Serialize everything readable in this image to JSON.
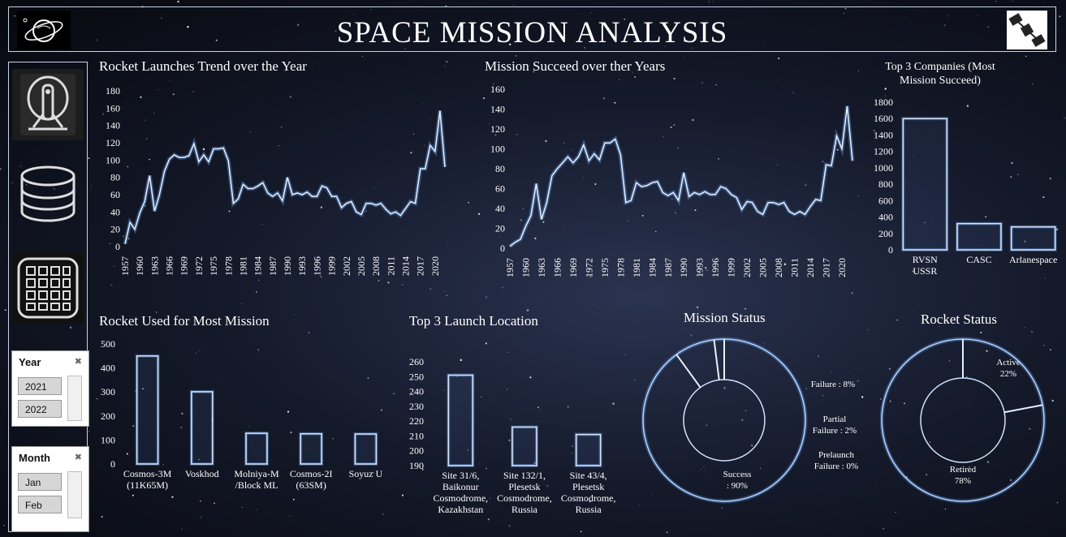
{
  "header": {
    "title": "SPACE MISSION ANALYSIS"
  },
  "sidebar": {
    "icons": [
      "rocket-icon",
      "database-icon",
      "grid-icon"
    ]
  },
  "slicers": {
    "year": {
      "title": "Year",
      "items": [
        "2021",
        "2022"
      ]
    },
    "month": {
      "title": "Month",
      "items": [
        "Jan",
        "Feb"
      ]
    }
  },
  "chart_data": [
    {
      "id": "launch-trend",
      "type": "line",
      "title": "Rocket Launches Trend over the Year",
      "xlabel": "",
      "ylabel": "",
      "ylim": [
        0,
        180
      ],
      "yticks": [
        0,
        20,
        40,
        60,
        80,
        100,
        120,
        140,
        160,
        180
      ],
      "xtick_labels": [
        "1957",
        "1960",
        "1963",
        "1966",
        "1969",
        "1972",
        "1975",
        "1978",
        "1981",
        "1984",
        "1987",
        "1990",
        "1993",
        "1996",
        "1999",
        "2002",
        "2005",
        "2008",
        "2011",
        "2014",
        "2017",
        "2020"
      ],
      "x": [
        1957,
        1958,
        1959,
        1960,
        1961,
        1962,
        1963,
        1964,
        1965,
        1966,
        1967,
        1968,
        1969,
        1970,
        1971,
        1972,
        1973,
        1974,
        1975,
        1976,
        1977,
        1978,
        1979,
        1980,
        1981,
        1982,
        1983,
        1984,
        1985,
        1986,
        1987,
        1988,
        1989,
        1990,
        1991,
        1992,
        1993,
        1994,
        1995,
        1996,
        1997,
        1998,
        1999,
        2000,
        2001,
        2002,
        2003,
        2004,
        2005,
        2006,
        2007,
        2008,
        2009,
        2010,
        2011,
        2012,
        2013,
        2014,
        2015,
        2016,
        2017,
        2018,
        2019,
        2020,
        2021,
        2022
      ],
      "values": [
        3,
        28,
        20,
        39,
        52,
        82,
        41,
        60,
        87,
        101,
        106,
        103,
        103,
        105,
        119,
        98,
        106,
        98,
        113,
        113,
        114,
        99,
        50,
        55,
        72,
        67,
        67,
        70,
        74,
        62,
        58,
        62,
        53,
        80,
        60,
        62,
        60,
        63,
        58,
        58,
        70,
        68,
        58,
        58,
        45,
        50,
        52,
        40,
        37,
        50,
        50,
        48,
        50,
        43,
        38,
        40,
        36,
        44,
        52,
        50,
        90,
        90,
        117,
        110,
        157,
        92
      ]
    },
    {
      "id": "mission-succeed",
      "type": "line",
      "title": "Mission  Succeed over ther Years",
      "xlabel": "",
      "ylabel": "",
      "ylim": [
        0,
        160
      ],
      "yticks": [
        0,
        20,
        40,
        60,
        80,
        100,
        120,
        140,
        160
      ],
      "xtick_labels": [
        "1957",
        "1960",
        "1963",
        "1966",
        "1969",
        "1972",
        "1975",
        "1978",
        "1981",
        "1984",
        "1987",
        "1990",
        "1993",
        "1996",
        "1999",
        "2002",
        "2005",
        "2008",
        "2011",
        "2014",
        "2017",
        "2020"
      ],
      "x": [
        1957,
        1958,
        1959,
        1960,
        1961,
        1962,
        1963,
        1964,
        1965,
        1966,
        1967,
        1968,
        1969,
        1970,
        1971,
        1972,
        1973,
        1974,
        1975,
        1976,
        1977,
        1978,
        1979,
        1980,
        1981,
        1982,
        1983,
        1984,
        1985,
        1986,
        1987,
        1988,
        1989,
        1990,
        1991,
        1992,
        1993,
        1994,
        1995,
        1996,
        1997,
        1998,
        1999,
        2000,
        2001,
        2002,
        2003,
        2004,
        2005,
        2006,
        2007,
        2008,
        2009,
        2010,
        2011,
        2012,
        2013,
        2014,
        2015,
        2016,
        2017,
        2018,
        2019,
        2020,
        2021,
        2022
      ],
      "values": [
        2,
        6,
        9,
        22,
        33,
        65,
        29,
        46,
        73,
        80,
        86,
        92,
        86,
        92,
        104,
        88,
        95,
        89,
        106,
        106,
        110,
        94,
        46,
        48,
        66,
        62,
        63,
        66,
        67,
        56,
        53,
        56,
        48,
        76,
        52,
        56,
        54,
        57,
        54,
        54,
        62,
        60,
        54,
        51,
        39,
        47,
        46,
        37,
        34,
        46,
        46,
        44,
        46,
        37,
        34,
        37,
        34,
        42,
        49,
        48,
        84,
        83,
        113,
        100,
        143,
        88
      ]
    },
    {
      "id": "top-companies",
      "type": "bar",
      "title": "Top 3 Companies  (Most Mission  Succeed)",
      "xlabel": "",
      "ylabel": "",
      "ylim": [
        0,
        1800
      ],
      "yticks": [
        0,
        200,
        400,
        600,
        800,
        1000,
        1200,
        1400,
        1600,
        1800
      ],
      "categories": [
        "RVSN USSR",
        "CASC",
        "Arianespace"
      ],
      "values": [
        1600,
        320,
        280
      ]
    },
    {
      "id": "rocket-used",
      "type": "bar",
      "title": "Rocket Used for Most Mission",
      "xlabel": "",
      "ylabel": "",
      "ylim": [
        0,
        500
      ],
      "yticks": [
        0,
        100,
        200,
        300,
        400,
        500
      ],
      "categories": [
        "Cosmos-3M (11K65M)",
        "Voskhod",
        "Molniya-M /Block ML",
        "Cosmos-2I (63SM)",
        "Soyuz U"
      ],
      "values": [
        450,
        301,
        128,
        126,
        125
      ]
    },
    {
      "id": "launch-location",
      "type": "bar",
      "title": "Top 3 Launch Location",
      "xlabel": "",
      "ylabel": "",
      "ylim": [
        190,
        260
      ],
      "yticks": [
        190,
        200,
        210,
        220,
        230,
        240,
        250,
        260
      ],
      "categories": [
        "Site 31/6, Baikonur Cosmodrome, Kazakhstan",
        "Site 132/1, Plesetsk Cosmodrome, Russia",
        "Site 43/4, Plesetsk Cosmodrome, Russia"
      ],
      "values": [
        251,
        216,
        211
      ]
    },
    {
      "id": "mission-status",
      "type": "pie",
      "title": "Mission Status",
      "slices": [
        {
          "label": "Success : 90%",
          "value": 90
        },
        {
          "label": "Failure : 8%",
          "value": 8
        },
        {
          "label": "Partial Failure : 2%",
          "value": 2
        },
        {
          "label": "Prelaunch Failure : 0%",
          "value": 0
        }
      ]
    },
    {
      "id": "rocket-status",
      "type": "pie",
      "title": "Rocket Status",
      "slices": [
        {
          "label": "Active 22%",
          "value": 22
        },
        {
          "label": "Retired 78%",
          "value": 78
        }
      ]
    }
  ]
}
